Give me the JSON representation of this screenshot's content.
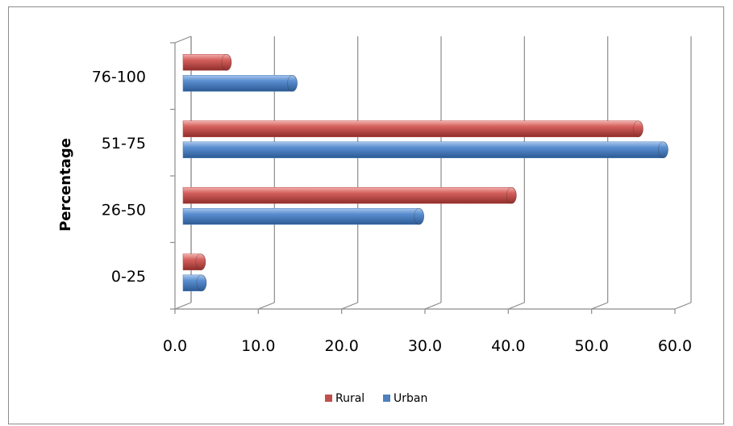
{
  "chart_data": {
    "type": "bar",
    "orientation": "horizontal",
    "style": "3d-cylinder",
    "categories": [
      "0-25",
      "26-50",
      "51-75",
      "76-100"
    ],
    "series": [
      {
        "name": "Rural",
        "color": "#c0504d",
        "values": [
          2.5,
          39.8,
          55.0,
          5.6
        ]
      },
      {
        "name": "Urban",
        "color": "#4f81bd",
        "values": [
          2.6,
          28.7,
          58.0,
          13.5
        ]
      }
    ],
    "ylabel": "Percentage",
    "xlabel": "",
    "xlim": [
      0,
      60
    ],
    "xticks": [
      "0.0",
      "10.0",
      "20.0",
      "30.0",
      "40.0",
      "50.0",
      "60.0"
    ],
    "grid": true,
    "legend_position": "bottom",
    "legend": [
      {
        "label": "Rural",
        "color": "#c0504d"
      },
      {
        "label": "Urban",
        "color": "#4f81bd"
      }
    ]
  }
}
